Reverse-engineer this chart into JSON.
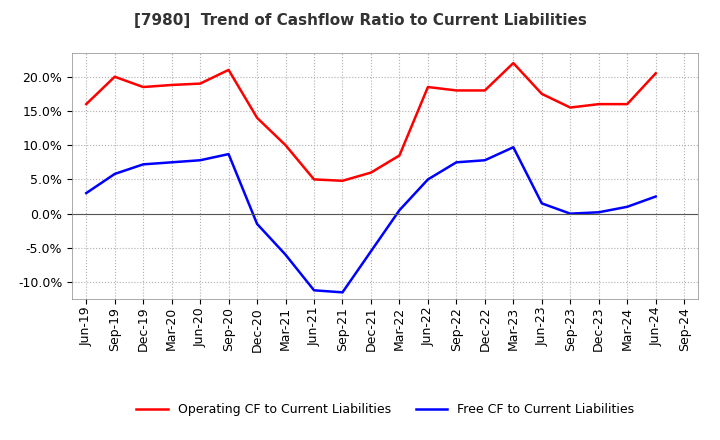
{
  "title": "[7980]  Trend of Cashflow Ratio to Current Liabilities",
  "x_labels": [
    "Jun-19",
    "Sep-19",
    "Dec-19",
    "Mar-20",
    "Jun-20",
    "Sep-20",
    "Dec-20",
    "Mar-21",
    "Jun-21",
    "Sep-21",
    "Dec-21",
    "Mar-22",
    "Jun-22",
    "Sep-22",
    "Dec-22",
    "Mar-23",
    "Jun-23",
    "Sep-23",
    "Dec-23",
    "Mar-24",
    "Jun-24",
    "Sep-24"
  ],
  "operating_cf": [
    16.0,
    20.0,
    18.5,
    18.8,
    19.0,
    21.0,
    14.0,
    10.0,
    5.0,
    4.8,
    6.0,
    8.5,
    18.5,
    18.0,
    18.0,
    22.0,
    17.5,
    15.5,
    16.0,
    16.0,
    20.5,
    null
  ],
  "free_cf": [
    3.0,
    5.8,
    7.2,
    7.5,
    7.8,
    8.7,
    -1.5,
    -6.0,
    -11.2,
    -11.5,
    -5.5,
    0.5,
    5.0,
    7.5,
    7.8,
    9.7,
    1.5,
    0.0,
    0.2,
    1.0,
    2.5,
    null
  ],
  "operating_color": "#ff0000",
  "free_color": "#0000ff",
  "ylim": [
    -12.5,
    23.5
  ],
  "yticks": [
    -10,
    -5,
    0,
    5,
    10,
    15,
    20
  ],
  "grid_color": "#b0b0b0",
  "bg_color": "#ffffff",
  "legend_op": "Operating CF to Current Liabilities",
  "legend_free": "Free CF to Current Liabilities",
  "title_fontsize": 11,
  "tick_fontsize": 9,
  "legend_fontsize": 9
}
